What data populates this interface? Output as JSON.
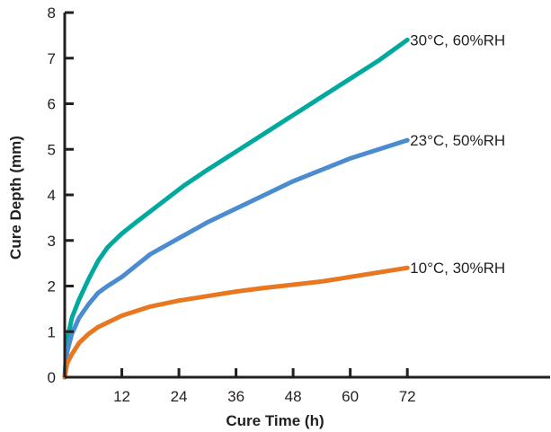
{
  "chart_data": {
    "type": "line",
    "title": "",
    "xlabel": "Cure Time (h)",
    "ylabel": "Cure Depth (mm)",
    "xlim": [
      0,
      102
    ],
    "ylim": [
      0,
      8
    ],
    "x_ticks": [
      12,
      24,
      36,
      48,
      60,
      72
    ],
    "y_ticks": [
      0,
      1,
      2,
      3,
      4,
      5,
      6,
      7,
      8
    ],
    "grid": false,
    "legend": "none",
    "series": [
      {
        "name": "30°C, 60%RH",
        "color": "#00a99d",
        "x": [
          0,
          0.5,
          1.5,
          3,
          5,
          7,
          9,
          12,
          15,
          20,
          25,
          30,
          36,
          42,
          48,
          54,
          60,
          66,
          72
        ],
        "y": [
          0,
          0.8,
          1.3,
          1.7,
          2.15,
          2.55,
          2.85,
          3.15,
          3.4,
          3.8,
          4.2,
          4.55,
          4.95,
          5.35,
          5.75,
          6.15,
          6.55,
          6.95,
          7.4
        ]
      },
      {
        "name": "23°C, 50%RH",
        "color": "#4b8cd0",
        "x": [
          0,
          0.5,
          1.5,
          3,
          5,
          7,
          9,
          12,
          15,
          18,
          24,
          30,
          36,
          42,
          48,
          54,
          60,
          66,
          72
        ],
        "y": [
          0,
          0.55,
          0.95,
          1.3,
          1.6,
          1.85,
          2.0,
          2.2,
          2.45,
          2.7,
          3.05,
          3.4,
          3.7,
          4.0,
          4.3,
          4.55,
          4.8,
          5.0,
          5.2
        ]
      },
      {
        "name": "10°C, 30%RH",
        "color": "#e87722",
        "x": [
          0,
          0.5,
          1.5,
          3,
          5,
          7,
          9,
          12,
          15,
          18,
          24,
          30,
          36,
          42,
          48,
          54,
          60,
          66,
          72
        ],
        "y": [
          0,
          0.3,
          0.5,
          0.75,
          0.95,
          1.1,
          1.2,
          1.35,
          1.45,
          1.55,
          1.68,
          1.78,
          1.88,
          1.96,
          2.03,
          2.1,
          2.2,
          2.3,
          2.4
        ]
      }
    ]
  }
}
